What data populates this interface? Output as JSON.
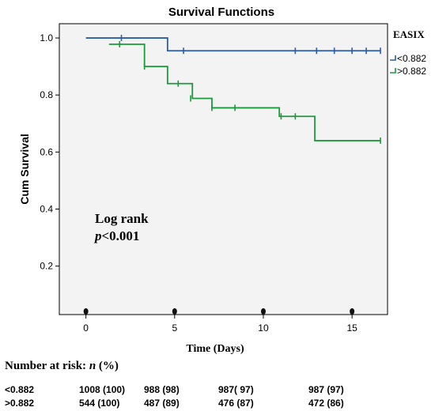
{
  "chart_data": {
    "type": "line",
    "subtype": "kaplan-meier step",
    "title": "Survival Functions",
    "xlabel": "Time (Days)",
    "ylabel": "Cum Survival",
    "xlim": [
      -1.5,
      17
    ],
    "ylim": [
      0.03,
      1.05
    ],
    "xticks": [
      "0",
      "5",
      "10",
      "15"
    ],
    "xtick_values": [
      0,
      5,
      10,
      15
    ],
    "yticks": [
      "0.2",
      "0.4",
      "0.6",
      "0.8",
      "1.0"
    ],
    "ytick_values": [
      0.2,
      0.4,
      0.6,
      0.8,
      1.0
    ],
    "background": "#f3f3f3",
    "legend": {
      "title": "EASIX",
      "position": "right-top"
    },
    "annotation": {
      "line1": "Log rank",
      "p_italic": "p",
      "p_rest": "<0.001"
    },
    "series": [
      {
        "name": "<0.882",
        "color": "#2a5caa",
        "steps": [
          [
            0,
            1.0
          ],
          [
            4.6,
            0.955
          ],
          [
            16.6,
            0.955
          ]
        ],
        "censored": [
          [
            2.0,
            1.0
          ],
          [
            5.5,
            0.955
          ],
          [
            11.8,
            0.955
          ],
          [
            13.0,
            0.955
          ],
          [
            14.0,
            0.955
          ],
          [
            15.0,
            0.955
          ],
          [
            15.8,
            0.955
          ],
          [
            16.6,
            0.955
          ]
        ]
      },
      {
        "name": ">0.882",
        "color": "#1a9b3a",
        "steps": [
          [
            1.3,
            0.978
          ],
          [
            3.3,
            0.9
          ],
          [
            4.6,
            0.84
          ],
          [
            6.0,
            0.788
          ],
          [
            7.1,
            0.755
          ],
          [
            10.9,
            0.725
          ],
          [
            12.9,
            0.64
          ],
          [
            16.6,
            0.64
          ]
        ],
        "censored": [
          [
            1.9,
            0.978
          ],
          [
            3.3,
            0.9
          ],
          [
            5.2,
            0.84
          ],
          [
            5.9,
            0.788
          ],
          [
            7.1,
            0.755
          ],
          [
            8.4,
            0.755
          ],
          [
            11.0,
            0.725
          ],
          [
            11.8,
            0.725
          ],
          [
            16.6,
            0.64
          ]
        ]
      }
    ],
    "x_axis_dots": [
      0,
      5,
      10,
      15
    ]
  },
  "risk_table": {
    "title_prefix": "Number at risk: ",
    "title_n": "n",
    "title_suffix": " (%)",
    "rows": [
      {
        "label": "<0.882",
        "cells": [
          "1008 (100)",
          "988 (98)",
          "987( 97)",
          "987 (97)"
        ]
      },
      {
        "label": ">0.882",
        "cells": [
          "544 (100)",
          "487 (89)",
          "476 (87)",
          "472 (86)"
        ]
      }
    ]
  }
}
